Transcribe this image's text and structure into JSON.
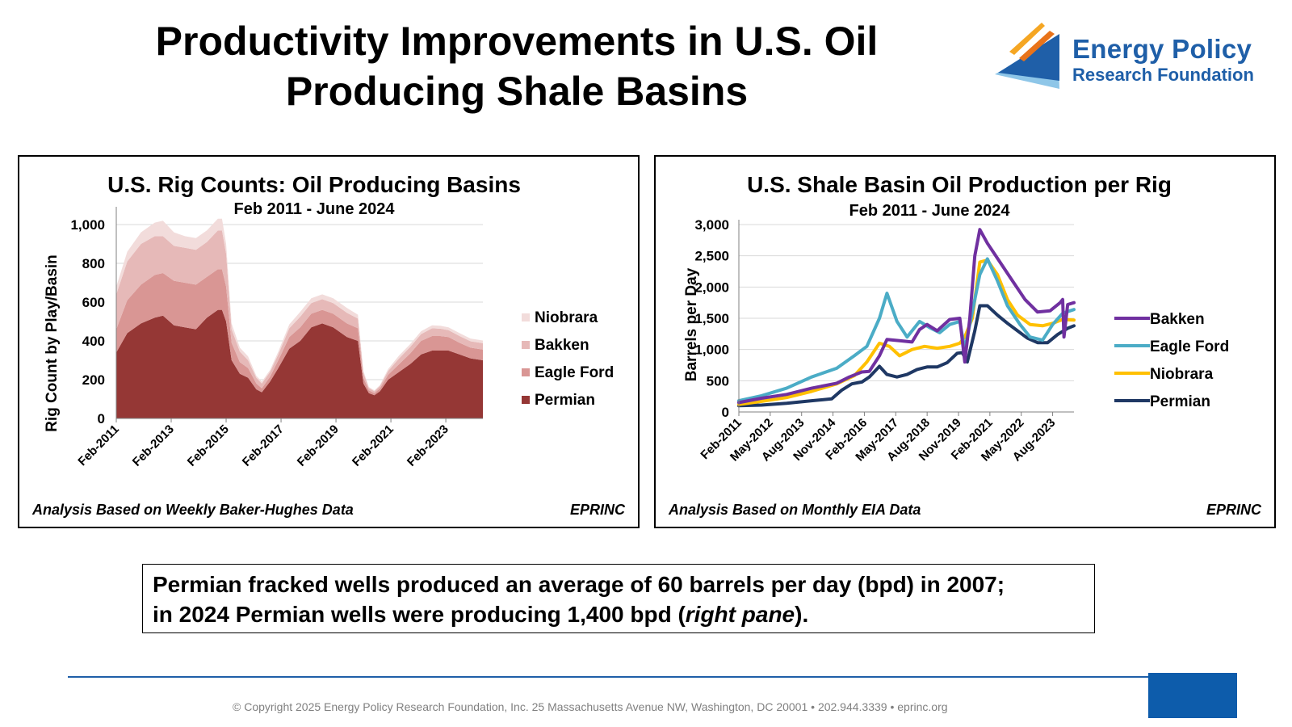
{
  "page": {
    "title_line1": "Productivity Improvements in U.S. Oil",
    "title_line2": "Producing Shale Basins",
    "logo": {
      "line1": "Energy Policy",
      "line2": "Research Foundation",
      "colors": [
        "#1f5fa8",
        "#f5a623",
        "#e8731a",
        "#8ec6e8"
      ]
    },
    "note": {
      "text1": "Permian fracked wells produced an average of 60 barrels per day (bpd) in 2007;",
      "text2a": "in 2024 Permian wells were producing 1,400 bpd (",
      "text2b": "right pane",
      "text2c": ")."
    },
    "copyright": "© Copyright 2025 Energy Policy Research Foundation, Inc. 25 Massachusetts Avenue NW, Washington, DC 20001 • 202.944.3339 • eprinc.org"
  },
  "chart_data": [
    {
      "type": "area",
      "stacked": true,
      "title": "U.S. Rig Counts: Oil Producing Basins",
      "subtitle": "Feb 2011 - June 2024",
      "ylabel": "Rig Count by Play/Basin",
      "xlabel": "",
      "ylim": [
        0,
        1050
      ],
      "yticks": [
        0,
        200,
        400,
        600,
        800,
        1000
      ],
      "ytick_labels": [
        "0",
        "200",
        "400",
        "600",
        "800",
        "1,000"
      ],
      "x": [
        2011.1,
        2011.5,
        2012.0,
        2012.5,
        2012.8,
        2013.2,
        2013.6,
        2014.0,
        2014.4,
        2014.8,
        2014.95,
        2015.1,
        2015.3,
        2015.6,
        2015.9,
        2016.2,
        2016.4,
        2016.7,
        2017.0,
        2017.4,
        2017.8,
        2018.2,
        2018.6,
        2019.0,
        2019.5,
        2019.9,
        2020.1,
        2020.3,
        2020.5,
        2020.7,
        2021.0,
        2021.4,
        2021.8,
        2022.2,
        2022.6,
        2022.9,
        2023.2,
        2023.6,
        2024.0,
        2024.45
      ],
      "x_tick_positions": [
        2011.1,
        2013.1,
        2015.1,
        2017.1,
        2019.1,
        2021.1,
        2023.1
      ],
      "x_tick_labels": [
        "Feb-2011",
        "Feb-2013",
        "Feb-2015",
        "Feb-2017",
        "Feb-2019",
        "Feb-2021",
        "Feb-2023"
      ],
      "series": [
        {
          "name": "Permian",
          "color": "#953735",
          "values": [
            340,
            440,
            490,
            520,
            530,
            480,
            470,
            460,
            520,
            560,
            560,
            500,
            300,
            230,
            210,
            150,
            135,
            190,
            260,
            360,
            400,
            470,
            490,
            470,
            420,
            400,
            180,
            130,
            120,
            140,
            200,
            240,
            280,
            330,
            350,
            350,
            350,
            330,
            310,
            300
          ]
        },
        {
          "name": "Eagle Ford",
          "color": "#d99694",
          "values": [
            120,
            170,
            200,
            220,
            220,
            230,
            230,
            230,
            210,
            210,
            210,
            180,
            90,
            60,
            50,
            30,
            20,
            25,
            40,
            60,
            70,
            70,
            70,
            70,
            70,
            65,
            30,
            15,
            10,
            15,
            25,
            40,
            55,
            70,
            75,
            75,
            70,
            60,
            55,
            55
          ]
        },
        {
          "name": "Bakken",
          "color": "#e6b9b8",
          "values": [
            180,
            200,
            210,
            200,
            190,
            180,
            180,
            180,
            180,
            200,
            200,
            170,
            70,
            55,
            40,
            30,
            25,
            25,
            30,
            45,
            55,
            55,
            55,
            55,
            55,
            50,
            25,
            12,
            10,
            12,
            20,
            30,
            33,
            35,
            40,
            38,
            35,
            35,
            33,
            33
          ]
        },
        {
          "name": "Niobrara",
          "color": "#f2dcdb",
          "values": [
            40,
            50,
            60,
            70,
            80,
            70,
            60,
            60,
            60,
            60,
            60,
            50,
            30,
            20,
            20,
            10,
            10,
            10,
            15,
            20,
            25,
            25,
            25,
            25,
            25,
            20,
            10,
            5,
            5,
            5,
            10,
            15,
            15,
            15,
            15,
            15,
            15,
            15,
            14,
            14
          ]
        }
      ],
      "legend_placement": "right",
      "legend_order": [
        "Niobrara",
        "Bakken",
        "Eagle Ford",
        "Permian"
      ],
      "grid": "horizontal",
      "footer_left": "Analysis Based on Weekly Baker-Hughes Data",
      "footer_right": "EPRINC"
    },
    {
      "type": "line",
      "title": "U.S. Shale Basin Oil Production per Rig",
      "subtitle": "Feb 2011 - June 2024",
      "ylabel": "Barrels per Day",
      "xlabel": "",
      "ylim": [
        0,
        3000
      ],
      "yticks": [
        0,
        500,
        1000,
        1500,
        2000,
        2500,
        3000
      ],
      "ytick_labels": [
        "0",
        "500",
        "1,000",
        "1,500",
        "2,000",
        "2,500",
        "3,000"
      ],
      "x_range": [
        2011.1,
        2024.45
      ],
      "x_tick_positions": [
        2011.1,
        2012.35,
        2013.6,
        2014.85,
        2016.1,
        2017.35,
        2018.6,
        2019.85,
        2021.1,
        2022.35,
        2023.6
      ],
      "x_tick_labels": [
        "Feb-2011",
        "May-2012",
        "Aug-2013",
        "Nov-2014",
        "Feb-2016",
        "May-2017",
        "Aug-2018",
        "Nov-2019",
        "Feb-2021",
        "May-2022",
        "Aug-2023"
      ],
      "series": [
        {
          "name": "Bakken",
          "color": "#7030a0",
          "x": [
            2011.1,
            2012.0,
            2013.0,
            2014.0,
            2015.0,
            2015.5,
            2016.0,
            2016.3,
            2016.7,
            2017.0,
            2017.5,
            2018.0,
            2018.3,
            2018.6,
            2019.0,
            2019.5,
            2019.9,
            2020.1,
            2020.3,
            2020.5,
            2020.7,
            2021.0,
            2021.5,
            2022.0,
            2022.5,
            2023.0,
            2023.5,
            2023.9,
            2024.0,
            2024.05,
            2024.2,
            2024.45
          ],
          "values": [
            150,
            220,
            280,
            380,
            460,
            560,
            640,
            650,
            900,
            1160,
            1140,
            1120,
            1320,
            1400,
            1300,
            1480,
            1500,
            800,
            1500,
            2500,
            2920,
            2700,
            2400,
            2100,
            1800,
            1600,
            1620,
            1750,
            1800,
            1200,
            1720,
            1750
          ]
        },
        {
          "name": "Eagle Ford",
          "color": "#4bacc6",
          "x": [
            2011.1,
            2012.0,
            2013.0,
            2014.0,
            2015.0,
            2015.7,
            2016.2,
            2016.7,
            2017.0,
            2017.4,
            2017.8,
            2018.3,
            2018.7,
            2019.1,
            2019.5,
            2019.9,
            2020.1,
            2020.4,
            2020.7,
            2021.0,
            2021.4,
            2021.8,
            2022.3,
            2022.7,
            2023.2,
            2023.6,
            2024.0,
            2024.45
          ],
          "values": [
            180,
            260,
            380,
            560,
            700,
            900,
            1050,
            1500,
            1900,
            1450,
            1200,
            1450,
            1350,
            1270,
            1400,
            1450,
            1000,
            1600,
            2200,
            2450,
            2100,
            1700,
            1400,
            1200,
            1150,
            1400,
            1580,
            1640
          ]
        },
        {
          "name": "Niobrara",
          "color": "#ffc000",
          "x": [
            2011.1,
            2012.0,
            2013.0,
            2014.0,
            2015.0,
            2015.7,
            2016.2,
            2016.7,
            2017.1,
            2017.5,
            2018.0,
            2018.5,
            2019.0,
            2019.5,
            2019.9,
            2020.1,
            2020.4,
            2020.7,
            2021.0,
            2021.4,
            2021.8,
            2022.2,
            2022.7,
            2023.2,
            2023.6,
            2024.0,
            2024.45
          ],
          "values": [
            120,
            170,
            230,
            330,
            450,
            580,
            800,
            1100,
            1050,
            900,
            1000,
            1050,
            1020,
            1050,
            1100,
            1200,
            1500,
            2400,
            2430,
            2200,
            1800,
            1550,
            1400,
            1380,
            1420,
            1480,
            1470
          ]
        },
        {
          "name": "Permian",
          "color": "#1f3864",
          "x": [
            2011.1,
            2012.0,
            2013.0,
            2014.0,
            2014.8,
            2015.2,
            2015.6,
            2016.0,
            2016.3,
            2016.7,
            2017.0,
            2017.4,
            2017.8,
            2018.2,
            2018.6,
            2019.0,
            2019.4,
            2019.8,
            2020.0,
            2020.2,
            2020.5,
            2020.7,
            2021.0,
            2021.4,
            2021.8,
            2022.2,
            2022.6,
            2023.0,
            2023.4,
            2023.8,
            2024.2,
            2024.45
          ],
          "values": [
            100,
            110,
            140,
            180,
            210,
            350,
            450,
            480,
            560,
            730,
            600,
            560,
            600,
            680,
            720,
            720,
            790,
            940,
            950,
            800,
            1300,
            1700,
            1700,
            1550,
            1420,
            1300,
            1180,
            1110,
            1110,
            1240,
            1340,
            1380
          ]
        }
      ],
      "legend_placement": "right",
      "legend_order": [
        "Bakken",
        "Eagle Ford",
        "Niobrara",
        "Permian"
      ],
      "grid": "horizontal",
      "footer_left": "Analysis Based on Monthly EIA Data",
      "footer_right": "EPRINC"
    }
  ]
}
